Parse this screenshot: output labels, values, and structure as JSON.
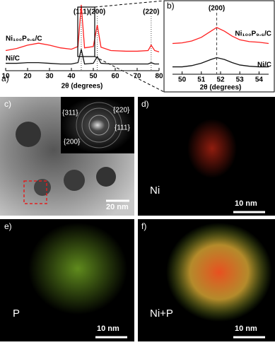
{
  "chart_data": [
    {
      "type": "line",
      "label": "a)",
      "xlabel": "2θ (degrees)",
      "x": [
        10,
        15,
        20,
        25,
        30,
        35,
        40,
        43,
        44.5,
        46,
        50,
        51.8,
        53.5,
        58,
        65,
        70,
        75,
        76.4,
        78,
        80
      ],
      "series": [
        {
          "name": "Ni₁₀₀P₉.₆/C",
          "color": "#ff2020",
          "values": [
            3.0,
            3.3,
            3.8,
            4.1,
            3.8,
            3.4,
            3.2,
            3.6,
            9.8,
            3.4,
            3.6,
            6.8,
            3.5,
            3.0,
            2.9,
            2.9,
            3.0,
            3.8,
            3.0,
            2.8
          ]
        },
        {
          "name": "Ni/C",
          "color": "#111111",
          "values": [
            1.1,
            1.1,
            1.2,
            1.2,
            1.1,
            1.0,
            1.0,
            1.2,
            3.2,
            1.0,
            1.1,
            2.1,
            1.1,
            1.0,
            1.0,
            1.0,
            1.0,
            1.2,
            1.0,
            1.0
          ]
        }
      ],
      "xlim": [
        10,
        80
      ],
      "xticks": [
        10,
        20,
        30,
        40,
        50,
        60,
        70,
        80
      ],
      "ylim": [
        0,
        10
      ],
      "annotations": [
        {
          "x": 44.5,
          "text": "(111)"
        },
        {
          "x": 51.8,
          "text": "(200)"
        },
        {
          "x": 76.4,
          "text": "(220)"
        }
      ]
    },
    {
      "type": "line",
      "label": "b)",
      "xlabel": "2θ (degrees)",
      "x": [
        49.5,
        50,
        50.5,
        51,
        51.5,
        51.8,
        52.2,
        52.6,
        53,
        53.5,
        54,
        54.5
      ],
      "series": [
        {
          "name": "Ni₁₀₀P₉.₆/C",
          "color": "#ff2020",
          "values": [
            5.0,
            5.1,
            5.4,
            6.0,
            7.0,
            7.6,
            7.0,
            6.2,
            5.6,
            5.3,
            5.2,
            5.0
          ]
        },
        {
          "name": "Ni/C",
          "color": "#111111",
          "values": [
            1.2,
            1.2,
            1.4,
            1.8,
            2.4,
            2.7,
            2.4,
            1.9,
            1.5,
            1.3,
            1.2,
            1.2
          ]
        }
      ],
      "xlim": [
        49.5,
        54.5
      ],
      "xticks": [
        50,
        51,
        52,
        53,
        54
      ],
      "ylim": [
        0,
        10
      ],
      "annotations": [
        {
          "x": 51.8,
          "text": "(200)"
        }
      ]
    }
  ],
  "panels": [
    {
      "label": "c)",
      "rings": [
        "{311}",
        "{220}",
        "{111}",
        "{200}"
      ],
      "scale": "20 nm"
    },
    {
      "label": "d)",
      "element": "Ni",
      "scale": "10 nm"
    },
    {
      "label": "e)",
      "element": "P",
      "scale": "10 nm"
    },
    {
      "label": "f)",
      "element": "Ni+P",
      "scale": "10 nm"
    }
  ]
}
